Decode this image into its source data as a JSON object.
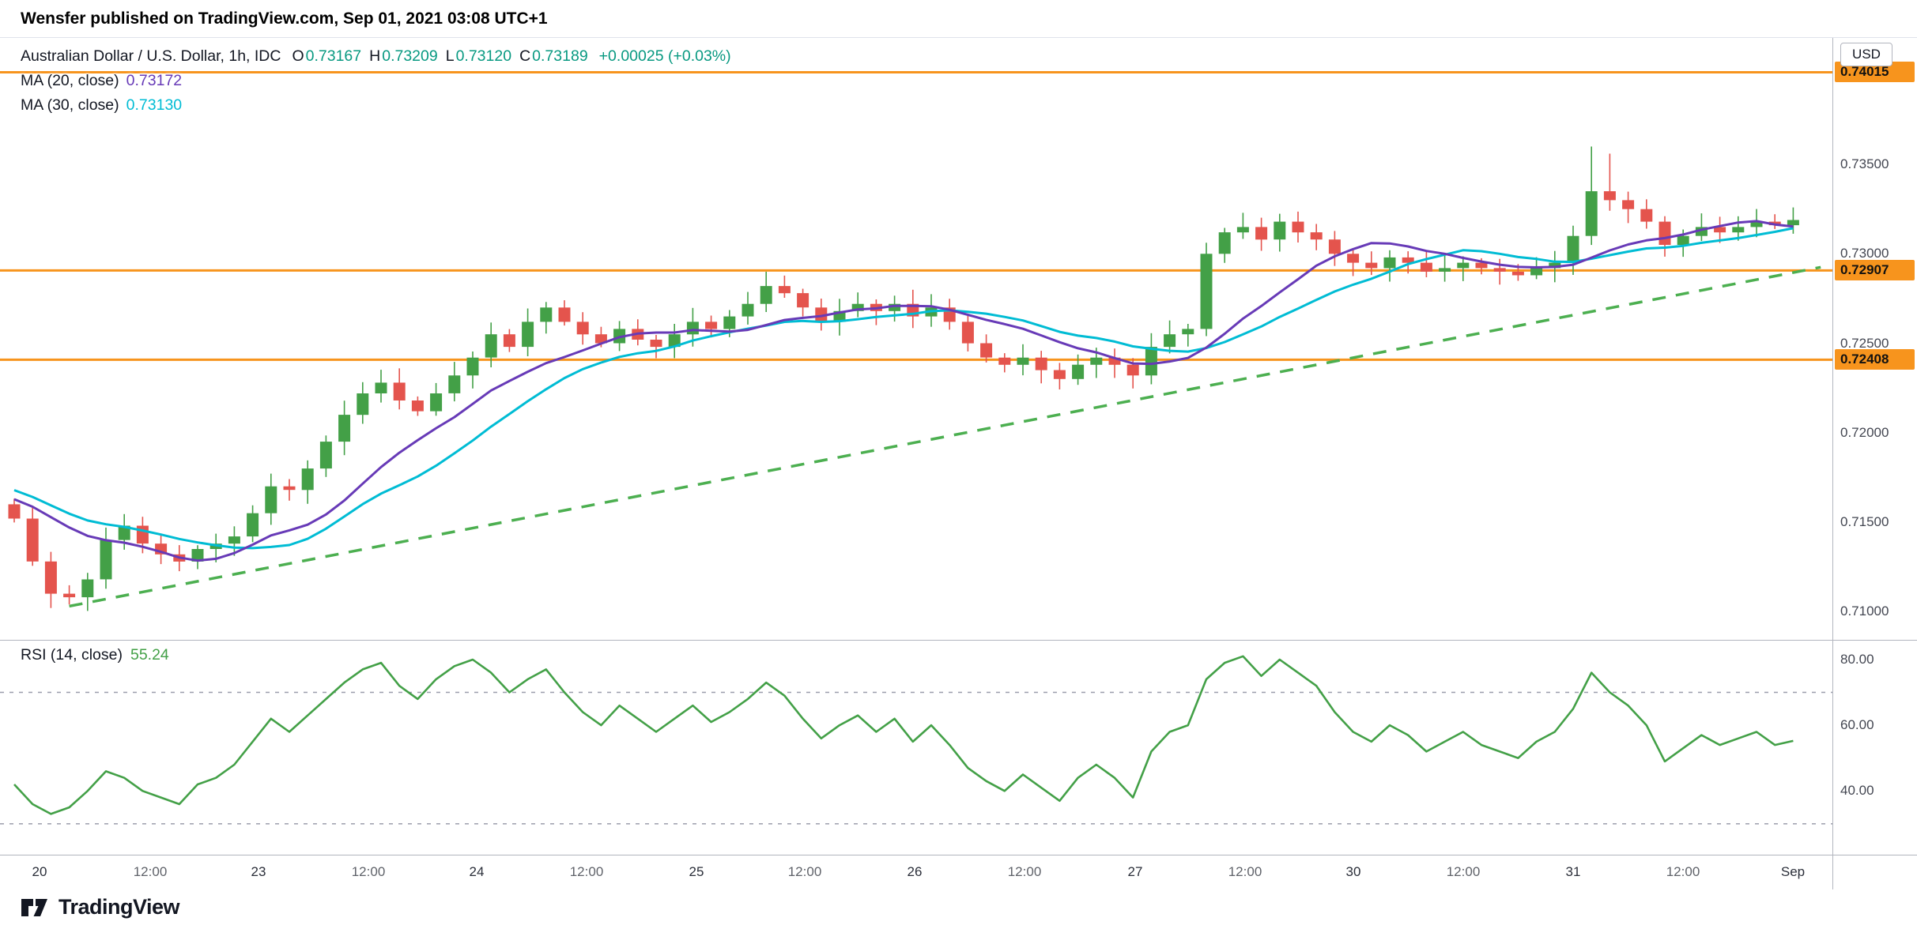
{
  "attribution": "Wensfer published on TradingView.com, Sep 01, 2021 03:08 UTC+1",
  "header": {
    "symbol_title": "Australian Dollar / U.S. Dollar, 1h, IDC",
    "ohlc_items": [
      {
        "label": "O",
        "value": "0.73167"
      },
      {
        "label": "H",
        "value": "0.73209"
      },
      {
        "label": "L",
        "value": "0.73120"
      },
      {
        "label": "C",
        "value": "0.73189"
      }
    ],
    "change": "+0.00025 (+0.03%)",
    "ma20": {
      "label": "MA (20, close)",
      "value": "0.73172"
    },
    "ma30": {
      "label": "MA (30, close)",
      "value": "0.73130"
    }
  },
  "rsi_legend": {
    "label": "RSI (14, close)",
    "value": "55.24"
  },
  "price_axis": {
    "currency": "USD",
    "labels": [
      {
        "text": "0.73500",
        "price": 0.735
      },
      {
        "text": "0.73000",
        "price": 0.73
      },
      {
        "text": "0.72500",
        "price": 0.725
      },
      {
        "text": "0.72000",
        "price": 0.72
      },
      {
        "text": "0.71500",
        "price": 0.715
      },
      {
        "text": "0.71000",
        "price": 0.71
      }
    ],
    "badges": [
      {
        "text": "0.74015",
        "price": 0.74015
      },
      {
        "text": "0.72907",
        "price": 0.72907
      },
      {
        "text": "0.72408",
        "price": 0.72408
      }
    ]
  },
  "rsi_axis": {
    "labels": [
      {
        "text": "80.00",
        "value": 80
      },
      {
        "text": "60.00",
        "value": 60
      },
      {
        "text": "40.00",
        "value": 40
      }
    ]
  },
  "time_axis": {
    "ticks": [
      {
        "label": "20",
        "i": 1.4,
        "major": true
      },
      {
        "label": "12:00",
        "i": 7.4,
        "major": false
      },
      {
        "label": "23",
        "i": 13.3,
        "major": true
      },
      {
        "label": "12:00",
        "i": 19.3,
        "major": false
      },
      {
        "label": "24",
        "i": 25.2,
        "major": true
      },
      {
        "label": "12:00",
        "i": 31.2,
        "major": false
      },
      {
        "label": "25",
        "i": 37.2,
        "major": true
      },
      {
        "label": "12:00",
        "i": 43.1,
        "major": false
      },
      {
        "label": "26",
        "i": 49.1,
        "major": true
      },
      {
        "label": "12:00",
        "i": 55.1,
        "major": false
      },
      {
        "label": "27",
        "i": 61.1,
        "major": true
      },
      {
        "label": "12:00",
        "i": 67.1,
        "major": false
      },
      {
        "label": "30",
        "i": 73.0,
        "major": true
      },
      {
        "label": "12:00",
        "i": 79.0,
        "major": false
      },
      {
        "label": "31",
        "i": 85.0,
        "major": true
      },
      {
        "label": "12:00",
        "i": 91.0,
        "major": false
      },
      {
        "label": "Sep",
        "i": 97.0,
        "major": true
      }
    ]
  },
  "logo_text": "TradingView",
  "colors": {
    "up": "#43a047",
    "down": "#e4544d",
    "ma20": "#673ab7",
    "ma30": "#00bcd4",
    "orange": "#f7941d",
    "trend": "#4caf50",
    "rsi": "#43a047",
    "rsi_level": "#9b9dab",
    "ohlc_value": "#089981"
  },
  "chart_data": {
    "type": "candlestick",
    "title": "Australian Dollar / U.S. Dollar, 1h, IDC",
    "interval": "1h",
    "last_candle": {
      "open": 0.73167,
      "high": 0.73209,
      "low": 0.7312,
      "close": 0.73189
    },
    "indicators": [
      {
        "name": "MA",
        "length": 20,
        "source": "close",
        "value": 0.73172
      },
      {
        "name": "MA",
        "length": 30,
        "source": "close",
        "value": 0.7313
      },
      {
        "name": "RSI",
        "length": 14,
        "source": "close",
        "value": 55.24
      }
    ],
    "price_pane": {
      "y_range": [
        0.70842,
        0.74207
      ],
      "pre_closes": [
        0.719,
        0.7185,
        0.718,
        0.7178,
        0.7175,
        0.7172,
        0.717,
        0.7168,
        0.7166,
        0.7165,
        0.7164,
        0.7162,
        0.7161,
        0.716,
        0.716
      ],
      "closes_2h": [
        0.7152,
        0.7128,
        0.711,
        0.7108,
        0.7118,
        0.714,
        0.7148,
        0.7138,
        0.7132,
        0.7128,
        0.7135,
        0.7138,
        0.7142,
        0.7155,
        0.717,
        0.7168,
        0.718,
        0.7195,
        0.721,
        0.7222,
        0.7228,
        0.7218,
        0.7212,
        0.7222,
        0.7232,
        0.7242,
        0.7255,
        0.7248,
        0.7262,
        0.727,
        0.7262,
        0.7255,
        0.725,
        0.7258,
        0.7252,
        0.7248,
        0.7255,
        0.7262,
        0.7258,
        0.7265,
        0.7272,
        0.7282,
        0.7278,
        0.727,
        0.7262,
        0.7268,
        0.7272,
        0.7268,
        0.7272,
        0.7265,
        0.727,
        0.7262,
        0.725,
        0.7242,
        0.7238,
        0.7242,
        0.7235,
        0.723,
        0.7238,
        0.7242,
        0.7238,
        0.7232,
        0.7248,
        0.7255,
        0.7258,
        0.73,
        0.7312,
        0.7315,
        0.7308,
        0.7318,
        0.7312,
        0.7308,
        0.73,
        0.7295,
        0.7292,
        0.7298,
        0.7295,
        0.729,
        0.7292,
        0.7295,
        0.7292,
        0.729,
        0.7288,
        0.7292,
        0.7295,
        0.731,
        0.7335,
        0.733,
        0.7325,
        0.7318,
        0.7305,
        0.731,
        0.7315,
        0.7312,
        0.7315,
        0.7318,
        0.7316,
        0.73189
      ],
      "wick_overrides": {
        "2": {
          "low": 0.7102
        },
        "21": {
          "high": 0.7236
        },
        "41": {
          "high": 0.729
        },
        "65": {
          "low": 0.7254
        },
        "86": {
          "high": 0.736
        },
        "87": {
          "high": 0.7356
        }
      },
      "horizontal_lines": [
        0.74015,
        0.72907,
        0.72408
      ],
      "trendline": {
        "from": {
          "i": 3,
          "price": 0.7103
        },
        "to": {
          "i": 98.5,
          "price": 0.72925
        }
      }
    },
    "rsi_pane": {
      "y_range": [
        20.6,
        86
      ],
      "levels": [
        70,
        30
      ],
      "values": [
        42,
        36,
        33,
        35,
        40,
        46,
        44,
        40,
        38,
        36,
        42,
        44,
        48,
        55,
        62,
        58,
        63,
        68,
        73,
        77,
        79,
        72,
        68,
        74,
        78,
        80,
        76,
        70,
        74,
        77,
        70,
        64,
        60,
        66,
        62,
        58,
        62,
        66,
        61,
        64,
        68,
        73,
        69,
        62,
        56,
        60,
        63,
        58,
        62,
        55,
        60,
        54,
        47,
        43,
        40,
        45,
        41,
        37,
        44,
        48,
        44,
        38,
        52,
        58,
        60,
        74,
        79,
        81,
        75,
        80,
        76,
        72,
        64,
        58,
        55,
        60,
        57,
        52,
        55,
        58,
        54,
        52,
        50,
        55,
        58,
        65,
        76,
        70,
        66,
        60,
        49,
        53,
        57,
        54,
        56,
        58,
        54,
        55.24
      ]
    }
  }
}
